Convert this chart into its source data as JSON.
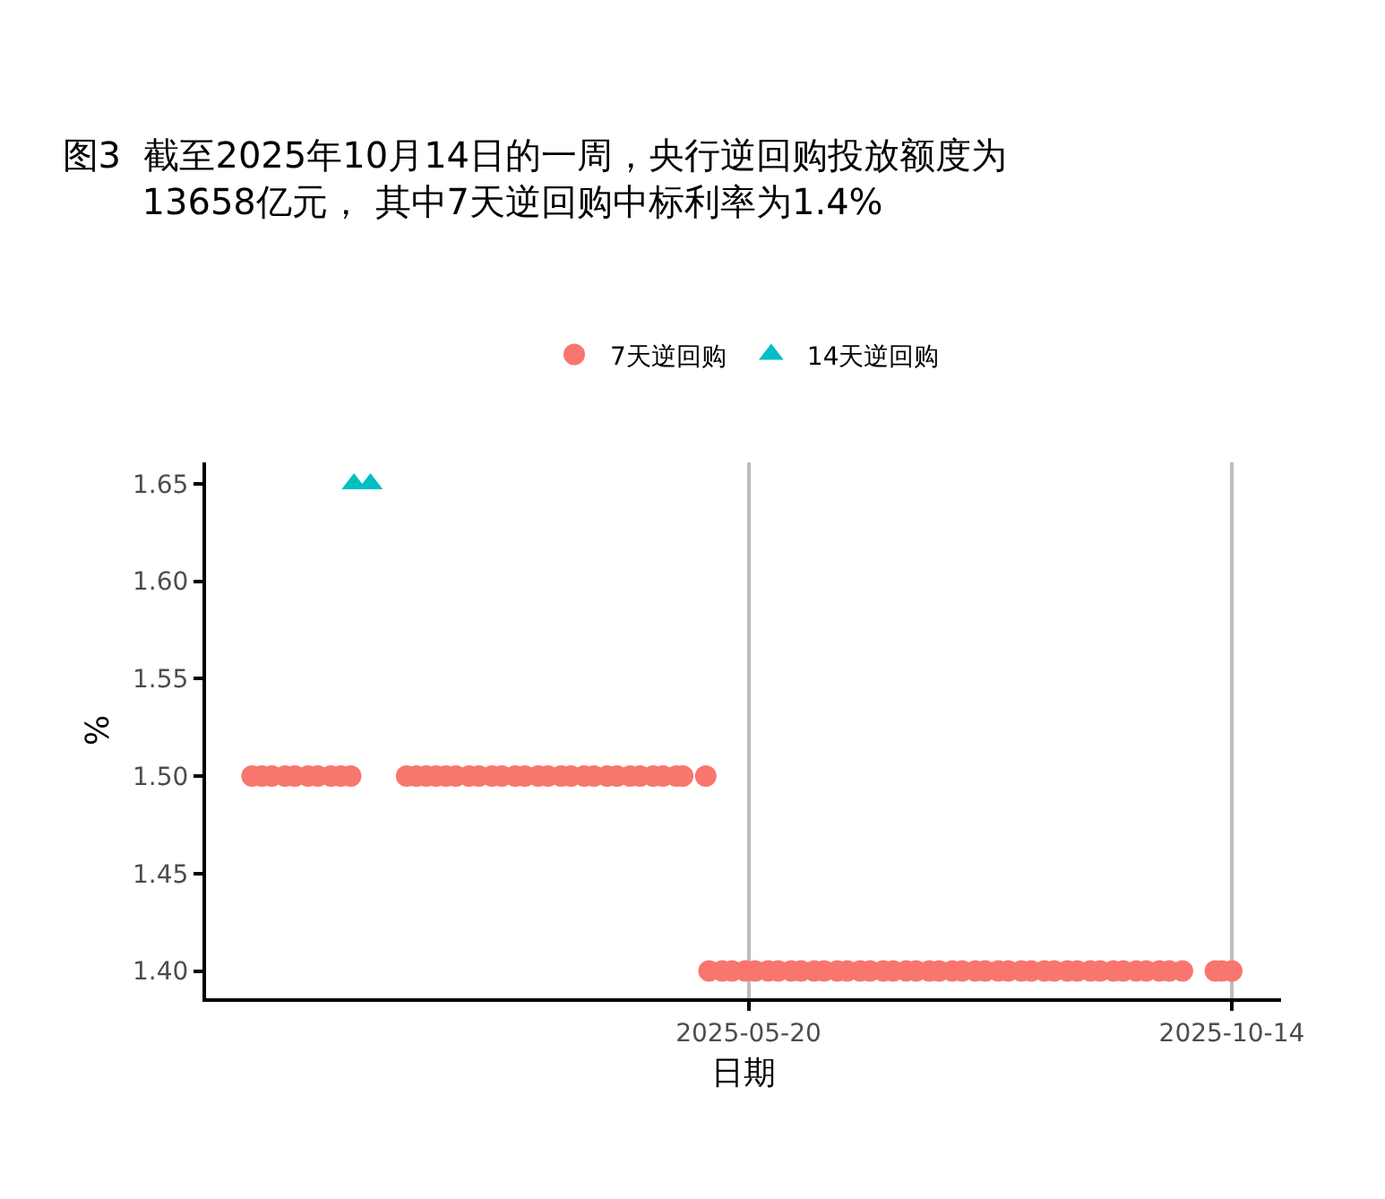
{
  "chart_data": {
    "type": "scatter",
    "title": "图3  截至2025年10月14日的一周，央行逆回购投放额度为\n13658亿元， 其中7天逆回购中标利率为1.4%",
    "xlabel": "日期",
    "ylabel": "%",
    "series": [
      {
        "name": "7天逆回购",
        "color": "#f8766d",
        "marker": "circle",
        "x": [
          "2024-12-20",
          "2024-12-23",
          "2024-12-26",
          "2024-12-30",
          "2025-01-02",
          "2025-01-06",
          "2025-01-09",
          "2025-01-13",
          "2025-01-16",
          "2025-01-19",
          "2025-02-05",
          "2025-02-08",
          "2025-02-11",
          "2025-02-14",
          "2025-02-17",
          "2025-02-20",
          "2025-02-24",
          "2025-02-27",
          "2025-03-03",
          "2025-03-06",
          "2025-03-10",
          "2025-03-13",
          "2025-03-17",
          "2025-03-20",
          "2025-03-24",
          "2025-03-27",
          "2025-03-31",
          "2025-04-03",
          "2025-04-07",
          "2025-04-10",
          "2025-04-14",
          "2025-04-17",
          "2025-04-21",
          "2025-04-24",
          "2025-04-28",
          "2025-04-30",
          "2025-05-07",
          "2025-05-08",
          "2025-05-12",
          "2025-05-15",
          "2025-05-19",
          "2025-05-22",
          "2025-05-26",
          "2025-05-29",
          "2025-06-02",
          "2025-06-05",
          "2025-06-09",
          "2025-06-12",
          "2025-06-16",
          "2025-06-19",
          "2025-06-23",
          "2025-06-26",
          "2025-06-30",
          "2025-07-03",
          "2025-07-07",
          "2025-07-10",
          "2025-07-14",
          "2025-07-17",
          "2025-07-21",
          "2025-07-24",
          "2025-07-28",
          "2025-07-31",
          "2025-08-04",
          "2025-08-07",
          "2025-08-11",
          "2025-08-14",
          "2025-08-18",
          "2025-08-21",
          "2025-08-25",
          "2025-08-28",
          "2025-09-01",
          "2025-09-04",
          "2025-09-08",
          "2025-09-11",
          "2025-09-15",
          "2025-09-18",
          "2025-09-22",
          "2025-09-25",
          "2025-09-29",
          "2025-10-09",
          "2025-10-11",
          "2025-10-14"
        ],
        "values": [
          1.5,
          1.5,
          1.5,
          1.5,
          1.5,
          1.5,
          1.5,
          1.5,
          1.5,
          1.5,
          1.5,
          1.5,
          1.5,
          1.5,
          1.5,
          1.5,
          1.5,
          1.5,
          1.5,
          1.5,
          1.5,
          1.5,
          1.5,
          1.5,
          1.5,
          1.5,
          1.5,
          1.5,
          1.5,
          1.5,
          1.5,
          1.5,
          1.5,
          1.5,
          1.5,
          1.5,
          1.5,
          1.4,
          1.4,
          1.4,
          1.4,
          1.4,
          1.4,
          1.4,
          1.4,
          1.4,
          1.4,
          1.4,
          1.4,
          1.4,
          1.4,
          1.4,
          1.4,
          1.4,
          1.4,
          1.4,
          1.4,
          1.4,
          1.4,
          1.4,
          1.4,
          1.4,
          1.4,
          1.4,
          1.4,
          1.4,
          1.4,
          1.4,
          1.4,
          1.4,
          1.4,
          1.4,
          1.4,
          1.4,
          1.4,
          1.4,
          1.4,
          1.4,
          1.4,
          1.4,
          1.4,
          1.4
        ]
      },
      {
        "name": "14天逆回购",
        "color": "#00bfc4",
        "marker": "triangle",
        "x": [
          "2025-01-20",
          "2025-01-25"
        ],
        "values": [
          1.65,
          1.65
        ]
      }
    ],
    "xlim": [
      "2024-12-06",
      "2025-10-29"
    ],
    "xticks": [
      {
        "value": "2025-05-20",
        "label": "2025-05-20"
      },
      {
        "value": "2025-10-14",
        "label": "2025-10-14"
      }
    ],
    "ylim": [
      1.386,
      1.661
    ],
    "yticks": [
      {
        "value": 1.4,
        "label": "1.40"
      },
      1.45,
      {
        "value": 1.5,
        "label": "1.50"
      },
      1.55,
      {
        "value": 1.6,
        "label": "1.60"
      },
      1.65
    ],
    "grid": "x",
    "legend": "top"
  }
}
